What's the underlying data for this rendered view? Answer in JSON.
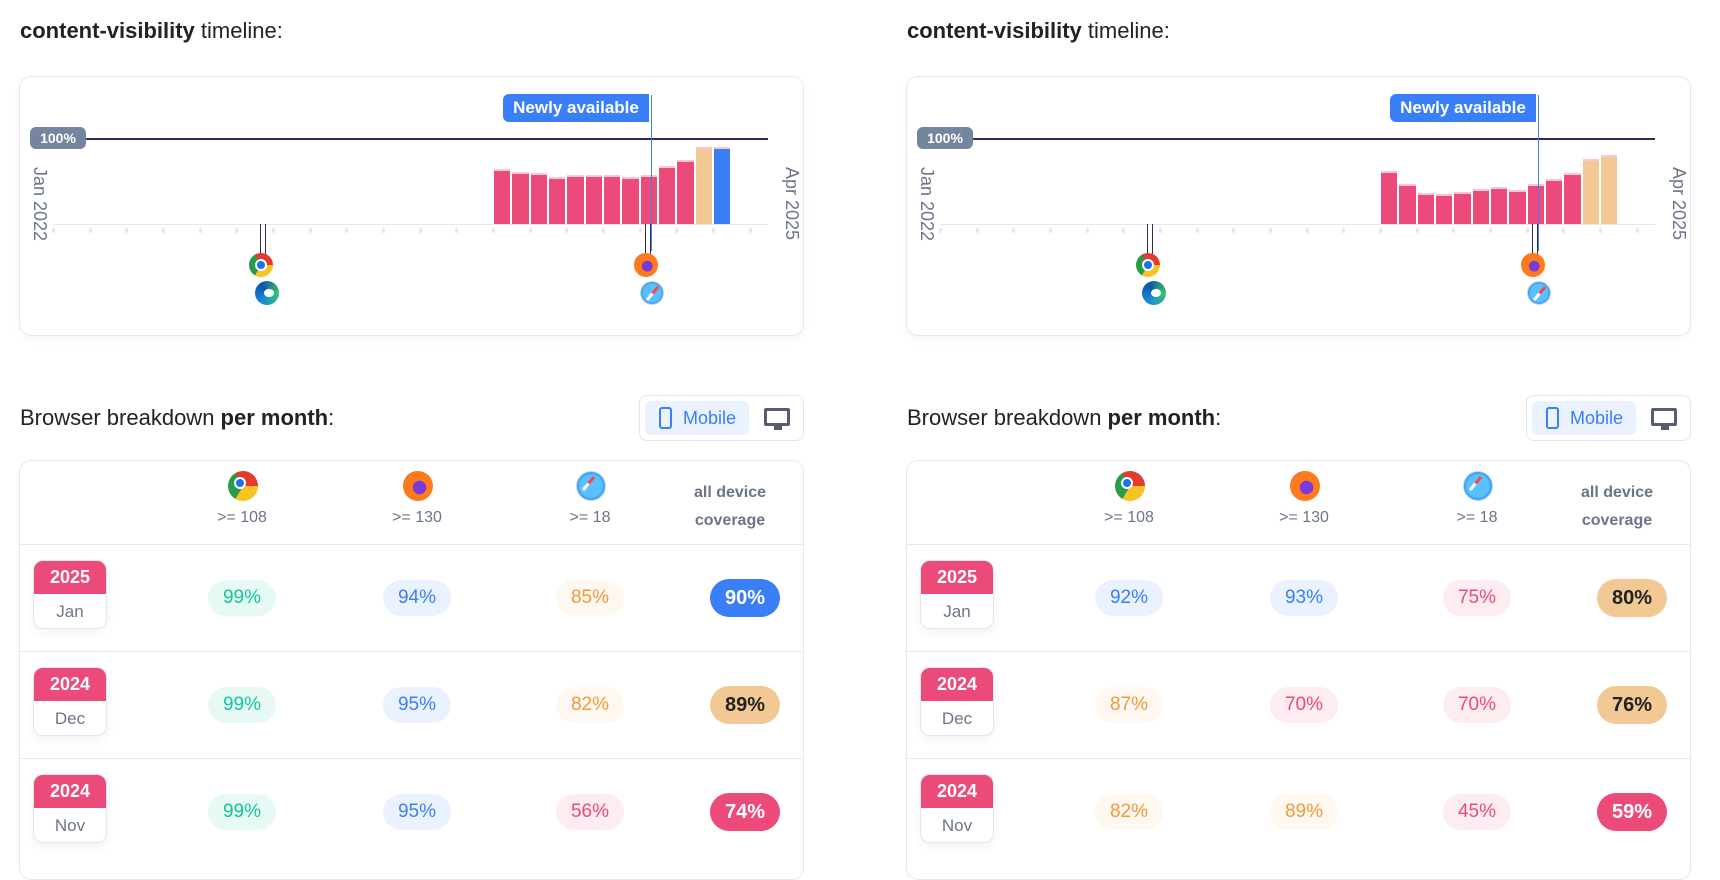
{
  "colors": {
    "bar_red": "#ec4a78",
    "bar_orange": "#f2c994",
    "bar_blue": "#3a7ef8",
    "accent": "#3a7ef8"
  },
  "panels": [
    {
      "timeline_title_bold": "content-visibility",
      "timeline_title_rest": " timeline:",
      "chart_data": {
        "type": "bar",
        "x_start": "Jan 2022",
        "x_end": "Apr 2025",
        "ref_label": "100%",
        "months": [
          "Jan 2024",
          "Feb 2024",
          "Mar 2024",
          "Apr 2024",
          "May 2024",
          "Jun 2024",
          "Jul 2024",
          "Aug 2024",
          "Sep 2024",
          "Oct 2024",
          "Nov 2024",
          "Dec 2024",
          "Jan 2025"
        ],
        "values": [
          64,
          60,
          59,
          55,
          57,
          57,
          57,
          55,
          57,
          67,
          74,
          89,
          90
        ],
        "bar_colors": [
          "red",
          "red",
          "red",
          "red",
          "red",
          "red",
          "red",
          "red",
          "red",
          "red",
          "red",
          "orange",
          "blue"
        ],
        "markers": [
          {
            "date": "Dec 2022",
            "icons": [
              "chrome-icon",
              "edge-icon"
            ]
          },
          {
            "date": "Sep 2024",
            "icons": [
              "firefox-icon",
              "safari-icon"
            ]
          }
        ],
        "annotation": {
          "label": "Newly available",
          "date": "Sep 2024"
        }
      },
      "breakdown": {
        "title_plain": "Browser breakdown ",
        "title_bold": "per month",
        "title_end": ":",
        "toggle_mobile": "Mobile",
        "active": "mobile",
        "columns": [
          {
            "icon": "chrome-icon",
            "version": ">= 108"
          },
          {
            "icon": "firefox-icon",
            "version": ">= 130"
          },
          {
            "icon": "safari-icon",
            "version": ">= 18"
          }
        ],
        "coverage_header": [
          "all device",
          "coverage"
        ],
        "rows": [
          {
            "year": "2025",
            "month": "Jan",
            "cells": [
              {
                "v": "99%",
                "tone": "green"
              },
              {
                "v": "94%",
                "tone": "blue"
              },
              {
                "v": "85%",
                "tone": "orange"
              }
            ],
            "coverage": {
              "v": "90%",
              "tone": "blue"
            }
          },
          {
            "year": "2024",
            "month": "Dec",
            "cells": [
              {
                "v": "99%",
                "tone": "green"
              },
              {
                "v": "95%",
                "tone": "blue"
              },
              {
                "v": "82%",
                "tone": "orange"
              }
            ],
            "coverage": {
              "v": "89%",
              "tone": "orange"
            }
          },
          {
            "year": "2024",
            "month": "Nov",
            "cells": [
              {
                "v": "99%",
                "tone": "green"
              },
              {
                "v": "95%",
                "tone": "blue"
              },
              {
                "v": "56%",
                "tone": "red"
              }
            ],
            "coverage": {
              "v": "74%",
              "tone": "red"
            }
          }
        ]
      }
    },
    {
      "timeline_title_bold": "content-visibility",
      "timeline_title_rest": " timeline:",
      "chart_data": {
        "type": "bar",
        "x_start": "Jan 2022",
        "x_end": "Apr 2025",
        "ref_label": "100%",
        "months": [
          "Jan 2024",
          "Feb 2024",
          "Mar 2024",
          "Apr 2024",
          "May 2024",
          "Jun 2024",
          "Jul 2024",
          "Aug 2024",
          "Sep 2024",
          "Oct 2024",
          "Nov 2024",
          "Dec 2024",
          "Jan 2025"
        ],
        "values": [
          62,
          46,
          36,
          35,
          37,
          41,
          43,
          39,
          46,
          52,
          59,
          76,
          80
        ],
        "bar_colors": [
          "red",
          "red",
          "red",
          "red",
          "red",
          "red",
          "red",
          "red",
          "red",
          "red",
          "red",
          "orange",
          "orange"
        ],
        "markers": [
          {
            "date": "Dec 2022",
            "icons": [
              "chrome-icon",
              "edge-icon"
            ]
          },
          {
            "date": "Sep 2024",
            "icons": [
              "firefox-icon",
              "safari-icon"
            ]
          }
        ],
        "annotation": {
          "label": "Newly available",
          "date": "Sep 2024"
        }
      },
      "breakdown": {
        "title_plain": "Browser breakdown ",
        "title_bold": "per month",
        "title_end": ":",
        "toggle_mobile": "Mobile",
        "active": "mobile",
        "columns": [
          {
            "icon": "chrome-icon",
            "version": ">= 108"
          },
          {
            "icon": "firefox-icon",
            "version": ">= 130"
          },
          {
            "icon": "safari-icon",
            "version": ">= 18"
          }
        ],
        "coverage_header": [
          "all device",
          "coverage"
        ],
        "rows": [
          {
            "year": "2025",
            "month": "Jan",
            "cells": [
              {
                "v": "92%",
                "tone": "blue"
              },
              {
                "v": "93%",
                "tone": "blue"
              },
              {
                "v": "75%",
                "tone": "red"
              }
            ],
            "coverage": {
              "v": "80%",
              "tone": "orange"
            }
          },
          {
            "year": "2024",
            "month": "Dec",
            "cells": [
              {
                "v": "87%",
                "tone": "orange"
              },
              {
                "v": "70%",
                "tone": "red"
              },
              {
                "v": "70%",
                "tone": "red"
              }
            ],
            "coverage": {
              "v": "76%",
              "tone": "orange"
            }
          },
          {
            "year": "2024",
            "month": "Nov",
            "cells": [
              {
                "v": "82%",
                "tone": "orange"
              },
              {
                "v": "89%",
                "tone": "orange"
              },
              {
                "v": "45%",
                "tone": "red"
              }
            ],
            "coverage": {
              "v": "59%",
              "tone": "red"
            }
          }
        ]
      }
    }
  ]
}
